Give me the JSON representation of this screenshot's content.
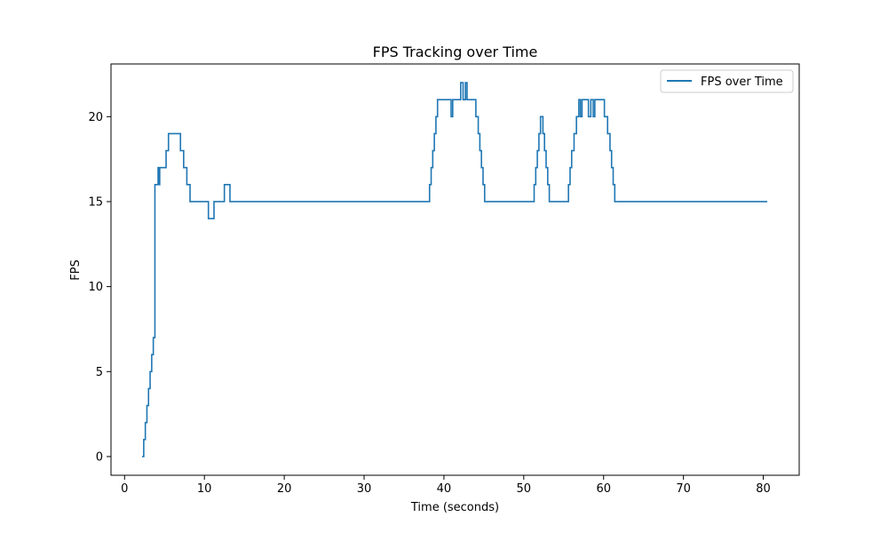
{
  "chart_data": {
    "type": "line",
    "title": "FPS Tracking over Time",
    "xlabel": "Time (seconds)",
    "ylabel": "FPS",
    "xlim": [
      -1.7,
      84.5
    ],
    "ylim": [
      -1.1,
      23.1
    ],
    "xticks": [
      0,
      10,
      20,
      30,
      40,
      50,
      60,
      70,
      80
    ],
    "yticks": [
      0,
      5,
      10,
      15,
      20
    ],
    "legend": {
      "position": "top-right"
    },
    "grid": false,
    "series": [
      {
        "name": "FPS over Time",
        "color": "#1f77b4",
        "step": true,
        "x": [
          2.2,
          2.4,
          2.6,
          2.8,
          3.0,
          3.2,
          3.4,
          3.6,
          3.8,
          4.2,
          4.3,
          4.4,
          4.5,
          4.6,
          4.7,
          5.2,
          5.5,
          6.0,
          7.0,
          7.4,
          7.8,
          8.2,
          8.7,
          10.5,
          10.7,
          11.2,
          12.5,
          13.2,
          38.2,
          38.4,
          38.6,
          38.8,
          39.0,
          39.2,
          39.4,
          39.6,
          39.8,
          40.0,
          40.9,
          41.1,
          41.3,
          42.1,
          42.4,
          42.7,
          42.9,
          43.1,
          44.0,
          44.3,
          44.5,
          44.7,
          44.9,
          45.1,
          45.4,
          45.9,
          51.3,
          51.5,
          51.7,
          51.9,
          52.1,
          52.4,
          52.6,
          52.8,
          53.0,
          53.2,
          53.5,
          55.6,
          55.8,
          56.0,
          56.3,
          56.6,
          56.9,
          57.1,
          57.3,
          57.5,
          57.7,
          58.1,
          58.4,
          58.7,
          58.9,
          59.2,
          59.5,
          60.1,
          60.5,
          60.8,
          61.0,
          61.2,
          61.4,
          61.6,
          61.9,
          62.1,
          62.4,
          80.5
        ],
        "y": [
          0,
          1,
          2,
          3,
          4,
          5,
          6,
          7,
          16,
          17,
          16,
          17,
          17,
          17,
          17,
          18,
          19,
          19,
          18,
          17,
          16,
          15,
          15,
          14,
          14,
          15,
          16,
          15,
          16,
          17,
          18,
          19,
          20,
          21,
          21,
          21,
          21,
          21,
          20,
          21,
          21,
          22,
          21,
          22,
          21,
          21,
          20,
          19,
          18,
          17,
          16,
          15,
          15,
          15,
          16,
          17,
          18,
          19,
          20,
          19,
          18,
          17,
          16,
          15,
          15,
          16,
          17,
          18,
          19,
          20,
          21,
          20,
          21,
          21,
          21,
          20,
          21,
          20,
          21,
          21,
          21,
          20,
          19,
          18,
          17,
          16,
          15,
          15,
          15,
          15,
          15,
          15
        ]
      }
    ]
  }
}
